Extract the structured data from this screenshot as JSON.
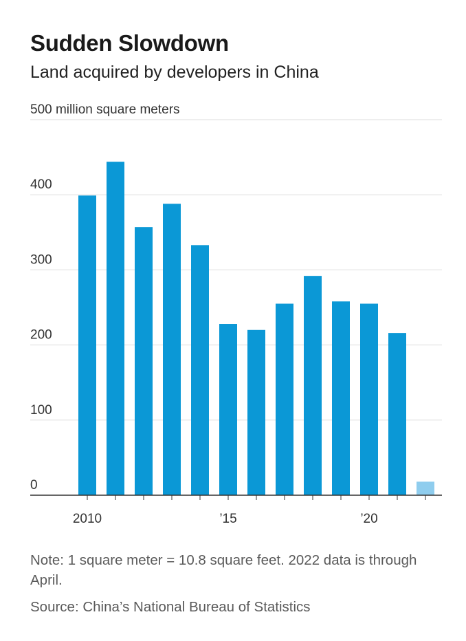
{
  "title": "Sudden Slowdown",
  "subtitle": "Land acquired by developers in China",
  "note": "Note: 1 square meter = 10.8 square feet. 2022 data is through April.",
  "source": "Source: China’s National Bureau of Statistics",
  "colors": {
    "bar": "#0b98d6",
    "bar_partial": "#8fcdee",
    "grid": "#dddddd",
    "axis": "#333333"
  },
  "chart_data": {
    "type": "bar",
    "unit_label": "500 million square meters",
    "categories": [
      "2010",
      "2011",
      "2012",
      "2013",
      "2014",
      "2015",
      "2016",
      "2017",
      "2018",
      "2019",
      "2020",
      "2021",
      "2022"
    ],
    "values": [
      399,
      444,
      357,
      388,
      333,
      228,
      220,
      255,
      292,
      258,
      255,
      216,
      18
    ],
    "partial": [
      false,
      false,
      false,
      false,
      false,
      false,
      false,
      false,
      false,
      false,
      false,
      false,
      true
    ],
    "x_tick_labels": [
      {
        "category": "2010",
        "label": "2010"
      },
      {
        "category": "2015",
        "label": "’15"
      },
      {
        "category": "2020",
        "label": "’20"
      }
    ],
    "y_ticks": [
      0,
      100,
      200,
      300,
      400,
      500
    ],
    "y_tick_labels": [
      "0",
      "100",
      "200",
      "300",
      "400",
      "500 million square meters"
    ],
    "ylim": [
      0,
      500
    ],
    "grid": true,
    "legend": "none"
  }
}
